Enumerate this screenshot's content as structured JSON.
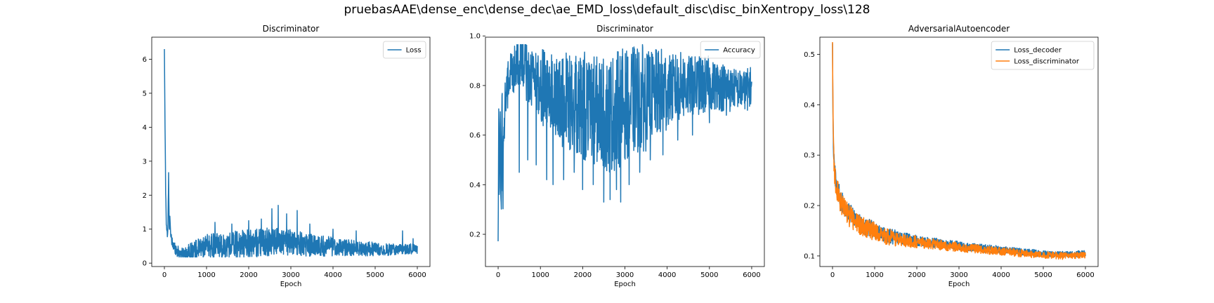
{
  "suptitle": "pruebasAAE\\dense_enc\\dense_dec\\ae_EMD_loss\\default_disc\\disc_binXentropy_loss\\128",
  "chart_data": [
    {
      "type": "line",
      "title": "Discriminator",
      "xlabel": "Epoch",
      "ylabel": "",
      "xlim": [
        -300,
        6300
      ],
      "ylim": [
        -0.1,
        6.65
      ],
      "xticks": [
        0,
        1000,
        2000,
        3000,
        4000,
        5000,
        6000
      ],
      "yticks": [
        0,
        1,
        2,
        3,
        4,
        5,
        6
      ],
      "ytick_labels": [
        "0",
        "1",
        "2",
        "3",
        "4",
        "5",
        "6"
      ],
      "legend": "top-right",
      "series": [
        {
          "name": "Loss",
          "color": "#1f77b4",
          "points": [
            [
              0,
              6.3
            ],
            [
              15,
              4.0
            ],
            [
              30,
              2.2
            ],
            [
              45,
              1.2
            ],
            [
              60,
              0.95
            ],
            [
              80,
              0.8
            ],
            [
              100,
              2.55
            ],
            [
              115,
              0.9
            ],
            [
              130,
              1.55
            ],
            [
              150,
              0.75
            ],
            [
              180,
              0.6
            ],
            [
              220,
              0.5
            ],
            [
              260,
              0.45
            ],
            [
              300,
              0.35
            ],
            [
              350,
              0.3
            ],
            [
              400,
              0.3
            ],
            [
              450,
              0.25
            ],
            [
              500,
              0.28
            ],
            [
              600,
              0.3
            ],
            [
              700,
              0.35
            ],
            [
              800,
              0.42
            ],
            [
              900,
              0.45
            ],
            [
              1000,
              0.5
            ],
            [
              1200,
              0.52
            ],
            [
              1400,
              0.5
            ],
            [
              1600,
              0.55
            ],
            [
              1800,
              0.55
            ],
            [
              2000,
              0.58
            ],
            [
              2200,
              0.6
            ],
            [
              2400,
              0.62
            ],
            [
              2600,
              0.65
            ],
            [
              2700,
              0.68
            ],
            [
              2800,
              0.62
            ],
            [
              3000,
              0.6
            ],
            [
              3200,
              0.58
            ],
            [
              3400,
              0.55
            ],
            [
              3600,
              0.52
            ],
            [
              3800,
              0.5
            ],
            [
              4000,
              0.48
            ],
            [
              4200,
              0.46
            ],
            [
              4400,
              0.45
            ],
            [
              4600,
              0.43
            ],
            [
              4800,
              0.42
            ],
            [
              5000,
              0.42
            ],
            [
              5200,
              0.4
            ],
            [
              5400,
              0.4
            ],
            [
              5600,
              0.4
            ],
            [
              5800,
              0.42
            ],
            [
              6000,
              0.42
            ]
          ],
          "noise": [
            0.3,
            0.5,
            0.6,
            0.7,
            0.7,
            0.65,
            0.6,
            0.5,
            0.4,
            0.35,
            0.3,
            0.25
          ],
          "spikes": [
            [
              1200,
              1.2
            ],
            [
              1600,
              1.15
            ],
            [
              2000,
              1.25
            ],
            [
              2300,
              1.3
            ],
            [
              2550,
              1.6
            ],
            [
              2700,
              1.7
            ],
            [
              2900,
              1.45
            ],
            [
              3150,
              1.55
            ],
            [
              3450,
              1.15
            ],
            [
              4000,
              1.0
            ],
            [
              4550,
              0.95
            ],
            [
              5650,
              0.95
            ],
            [
              5900,
              0.72
            ]
          ]
        }
      ]
    },
    {
      "type": "line",
      "title": "Discriminator",
      "xlabel": "Epoch",
      "ylabel": "",
      "xlim": [
        -300,
        6300
      ],
      "ylim": [
        0.07,
        0.995
      ],
      "xticks": [
        0,
        1000,
        2000,
        3000,
        4000,
        5000,
        6000
      ],
      "yticks": [
        0.2,
        0.4,
        0.6,
        0.8,
        1.0
      ],
      "ytick_labels": [
        "0.2",
        "0.4",
        "0.6",
        "0.8",
        "1.0"
      ],
      "legend": "top-right",
      "series": [
        {
          "name": "Accuracy",
          "color": "#1f77b4",
          "points": [
            [
              0,
              0.1
            ],
            [
              15,
              0.65
            ],
            [
              30,
              0.3
            ],
            [
              50,
              0.7
            ],
            [
              70,
              0.25
            ],
            [
              90,
              0.75
            ],
            [
              110,
              0.4
            ],
            [
              130,
              0.55
            ],
            [
              160,
              0.72
            ],
            [
              200,
              0.78
            ],
            [
              260,
              0.82
            ],
            [
              300,
              0.85
            ],
            [
              400,
              0.88
            ],
            [
              500,
              0.9
            ],
            [
              600,
              0.88
            ],
            [
              700,
              0.85
            ],
            [
              800,
              0.82
            ],
            [
              1000,
              0.8
            ],
            [
              1200,
              0.78
            ],
            [
              1400,
              0.75
            ],
            [
              1600,
              0.74
            ],
            [
              1800,
              0.72
            ],
            [
              2000,
              0.72
            ],
            [
              2200,
              0.7
            ],
            [
              2400,
              0.7
            ],
            [
              2600,
              0.68
            ],
            [
              2800,
              0.7
            ],
            [
              3000,
              0.72
            ],
            [
              3200,
              0.74
            ],
            [
              3400,
              0.75
            ],
            [
              3600,
              0.76
            ],
            [
              3800,
              0.77
            ],
            [
              4000,
              0.78
            ],
            [
              4200,
              0.79
            ],
            [
              4400,
              0.8
            ],
            [
              4600,
              0.8
            ],
            [
              4800,
              0.8
            ],
            [
              5000,
              0.8
            ],
            [
              5200,
              0.8
            ],
            [
              5400,
              0.79
            ],
            [
              5600,
              0.79
            ],
            [
              5800,
              0.78
            ],
            [
              6000,
              0.8
            ]
          ],
          "noise": [
            0.1,
            0.12,
            0.16,
            0.2,
            0.22,
            0.24,
            0.22,
            0.18,
            0.14,
            0.12,
            0.1,
            0.08
          ],
          "dips": [
            [
              500,
              0.45
            ],
            [
              700,
              0.5
            ],
            [
              900,
              0.48
            ],
            [
              1150,
              0.42
            ],
            [
              1300,
              0.4
            ],
            [
              1550,
              0.42
            ],
            [
              1800,
              0.45
            ],
            [
              2000,
              0.38
            ],
            [
              2250,
              0.4
            ],
            [
              2500,
              0.33
            ],
            [
              2650,
              0.34
            ],
            [
              2800,
              0.38
            ],
            [
              2900,
              0.33
            ],
            [
              3100,
              0.4
            ],
            [
              3350,
              0.45
            ],
            [
              3600,
              0.5
            ],
            [
              3900,
              0.52
            ],
            [
              4250,
              0.58
            ],
            [
              4600,
              0.6
            ],
            [
              5000,
              0.65
            ],
            [
              5400,
              0.68
            ],
            [
              5900,
              0.7
            ]
          ]
        }
      ]
    },
    {
      "type": "line",
      "title": "AdversarialAutoencoder",
      "xlabel": "Epoch",
      "ylabel": "",
      "xlim": [
        -300,
        6300
      ],
      "ylim": [
        0.079,
        0.534
      ],
      "xticks": [
        0,
        1000,
        2000,
        3000,
        4000,
        5000,
        6000
      ],
      "yticks": [
        0.1,
        0.2,
        0.3,
        0.4,
        0.5
      ],
      "ytick_labels": [
        "0.1",
        "0.2",
        "0.3",
        "0.4",
        "0.5"
      ],
      "legend": "top-right",
      "series": [
        {
          "name": "Loss_decoder",
          "color": "#1f77b4",
          "points": [
            [
              0,
              0.52
            ],
            [
              10,
              0.4
            ],
            [
              20,
              0.33
            ],
            [
              40,
              0.28
            ],
            [
              60,
              0.26
            ],
            [
              100,
              0.24
            ],
            [
              150,
              0.225
            ],
            [
              200,
              0.21
            ],
            [
              300,
              0.195
            ],
            [
              400,
              0.185
            ],
            [
              500,
              0.175
            ],
            [
              600,
              0.168
            ],
            [
              800,
              0.158
            ],
            [
              1000,
              0.15
            ],
            [
              1200,
              0.143
            ],
            [
              1500,
              0.137
            ],
            [
              2000,
              0.13
            ],
            [
              2500,
              0.125
            ],
            [
              3000,
              0.12
            ],
            [
              3500,
              0.116
            ],
            [
              4000,
              0.112
            ],
            [
              4500,
              0.108
            ],
            [
              5000,
              0.105
            ],
            [
              5500,
              0.103
            ],
            [
              6000,
              0.105
            ]
          ],
          "noise": [
            0.02,
            0.018,
            0.015,
            0.012,
            0.01,
            0.009,
            0.008,
            0.008,
            0.007,
            0.007,
            0.006,
            0.006
          ]
        },
        {
          "name": "Loss_discriminator",
          "color": "#ff7f0e",
          "points": [
            [
              0,
              0.525
            ],
            [
              10,
              0.39
            ],
            [
              20,
              0.32
            ],
            [
              40,
              0.275
            ],
            [
              60,
              0.255
            ],
            [
              100,
              0.235
            ],
            [
              150,
              0.22
            ],
            [
              200,
              0.205
            ],
            [
              300,
              0.19
            ],
            [
              400,
              0.18
            ],
            [
              500,
              0.172
            ],
            [
              600,
              0.165
            ],
            [
              800,
              0.155
            ],
            [
              1000,
              0.147
            ],
            [
              1200,
              0.14
            ],
            [
              1500,
              0.134
            ],
            [
              2000,
              0.127
            ],
            [
              2500,
              0.122
            ],
            [
              3000,
              0.117
            ],
            [
              3500,
              0.113
            ],
            [
              4000,
              0.109
            ],
            [
              4500,
              0.105
            ],
            [
              5000,
              0.102
            ],
            [
              5500,
              0.1
            ],
            [
              6000,
              0.102
            ]
          ],
          "noise": [
            0.022,
            0.02,
            0.016,
            0.013,
            0.011,
            0.01,
            0.009,
            0.008,
            0.008,
            0.007,
            0.007,
            0.006
          ]
        }
      ]
    }
  ]
}
